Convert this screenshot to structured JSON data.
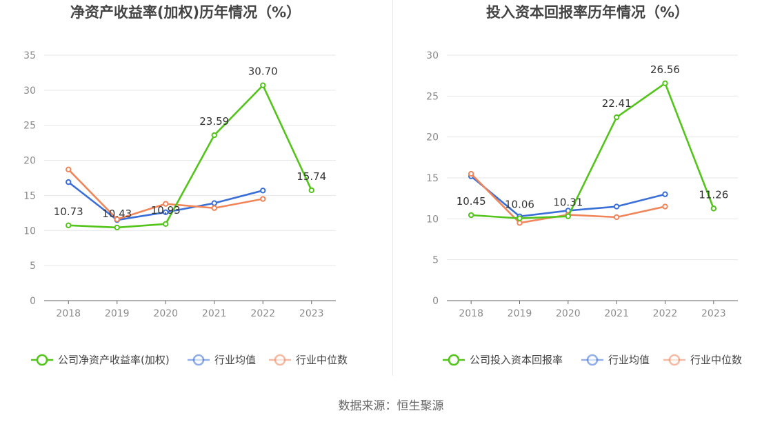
{
  "chart_data": [
    {
      "type": "line",
      "title": "净资产收益率(加权)历年情况（%）",
      "categories": [
        "2018",
        "2019",
        "2020",
        "2021",
        "2022",
        "2023"
      ],
      "ylim": [
        0,
        35
      ],
      "yticks": [
        0,
        5,
        10,
        15,
        20,
        25,
        30,
        35
      ],
      "grid": true,
      "legend_position": "bottom",
      "series": [
        {
          "name": "公司净资产收益率(加权)",
          "color": "#52c41a",
          "values": [
            10.73,
            10.43,
            10.93,
            23.59,
            30.7,
            15.74
          ],
          "labels": [
            "10.73",
            "10.43",
            "10.93",
            "23.59",
            "30.70",
            "15.74"
          ]
        },
        {
          "name": "行业均值",
          "color": "#3b6fd8",
          "values": [
            16.9,
            11.5,
            12.6,
            13.9,
            15.7,
            null
          ]
        },
        {
          "name": "行业中位数",
          "color": "#f0855a",
          "values": [
            18.7,
            11.6,
            13.8,
            13.2,
            14.5,
            null
          ]
        }
      ]
    },
    {
      "type": "line",
      "title": "投入资本回报率历年情况（%）",
      "categories": [
        "2018",
        "2019",
        "2020",
        "2021",
        "2022",
        "2023"
      ],
      "ylim": [
        0,
        30
      ],
      "yticks": [
        0,
        5,
        10,
        15,
        20,
        25,
        30
      ],
      "grid": true,
      "legend_position": "bottom",
      "series": [
        {
          "name": "公司投入资本回报率",
          "color": "#52c41a",
          "values": [
            10.45,
            10.06,
            10.31,
            22.41,
            26.56,
            11.26
          ],
          "labels": [
            "10.45",
            "10.06",
            "10.31",
            "22.41",
            "26.56",
            "11.26"
          ]
        },
        {
          "name": "行业均值",
          "color": "#3b6fd8",
          "values": [
            15.2,
            10.3,
            11.0,
            11.5,
            13.0,
            null
          ]
        },
        {
          "name": "行业中位数",
          "color": "#f0855a",
          "values": [
            15.5,
            9.5,
            10.5,
            10.2,
            11.5,
            null
          ]
        }
      ]
    }
  ],
  "source_text": "数据来源：恒生聚源"
}
